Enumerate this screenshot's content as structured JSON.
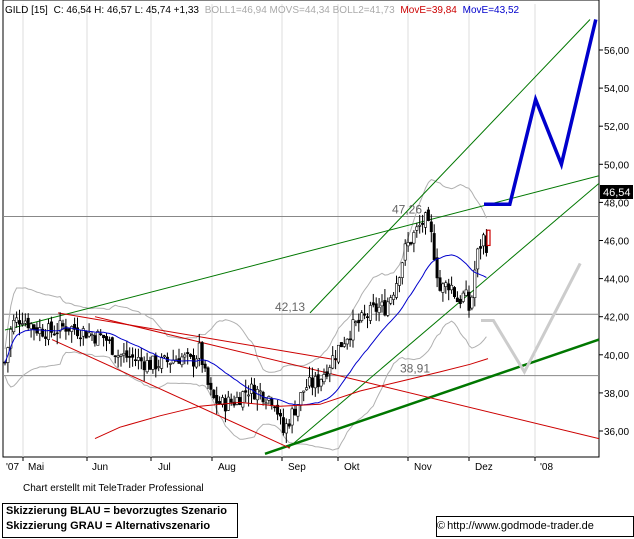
{
  "header": {
    "symbol": "GILD [15]",
    "ohlc": "C: 46,54 H: 46,57 L: 45,74 +1,33",
    "indicators_gray": "BOLL1=46,94 MOVS=44,34 BOLL2=41,73",
    "move1": "MovE=39,84",
    "move2": "MovE=43,52"
  },
  "colors": {
    "red": "#cc0000",
    "blue": "#0000cc",
    "green": "#007700",
    "gray": "#aaaaaa"
  },
  "chart_data": {
    "type": "candlestick",
    "title": "",
    "y_ticks": [
      36,
      38,
      40,
      42,
      44,
      46,
      48,
      50,
      52,
      54,
      56
    ],
    "y_tick_labels": [
      "36,00",
      "38,00",
      "40,00",
      "42,00",
      "44,00",
      "46,00",
      "48,00",
      "50,00",
      "52,00",
      "54,00",
      "56,00"
    ],
    "ylim": [
      34.8,
      57.6
    ],
    "x_labels": [
      "'07",
      "Mai",
      "Jun",
      "Jul",
      "Aug",
      "Sep",
      "Okt",
      "Nov",
      "Dez",
      "'08"
    ],
    "last_price": "46,54",
    "levels": [
      {
        "value": 47.26,
        "label": "47,26"
      },
      {
        "value": 42.13,
        "label": "42,13"
      },
      {
        "value": 38.91,
        "label": "38,91"
      }
    ],
    "scenario_blue": [
      [
        0,
        47.9
      ],
      [
        3,
        47.9
      ],
      [
        6,
        53.4
      ],
      [
        9,
        50.0
      ],
      [
        13,
        57.6
      ]
    ],
    "scenario_gray": [
      [
        0,
        41.8
      ],
      [
        2,
        41.8
      ],
      [
        7,
        39.1
      ],
      [
        16,
        44.8
      ]
    ]
  },
  "footer": {
    "credit": "Chart erstellt mit TeleTrader Professional",
    "legend_blue": "Skizzierung BLAU = bevorzugtes Szenario",
    "legend_gray": "Skizzierung GRAU = Alternativszenario",
    "url": "http://www.godmode-trader.de",
    "copyright_symbol": "©"
  }
}
